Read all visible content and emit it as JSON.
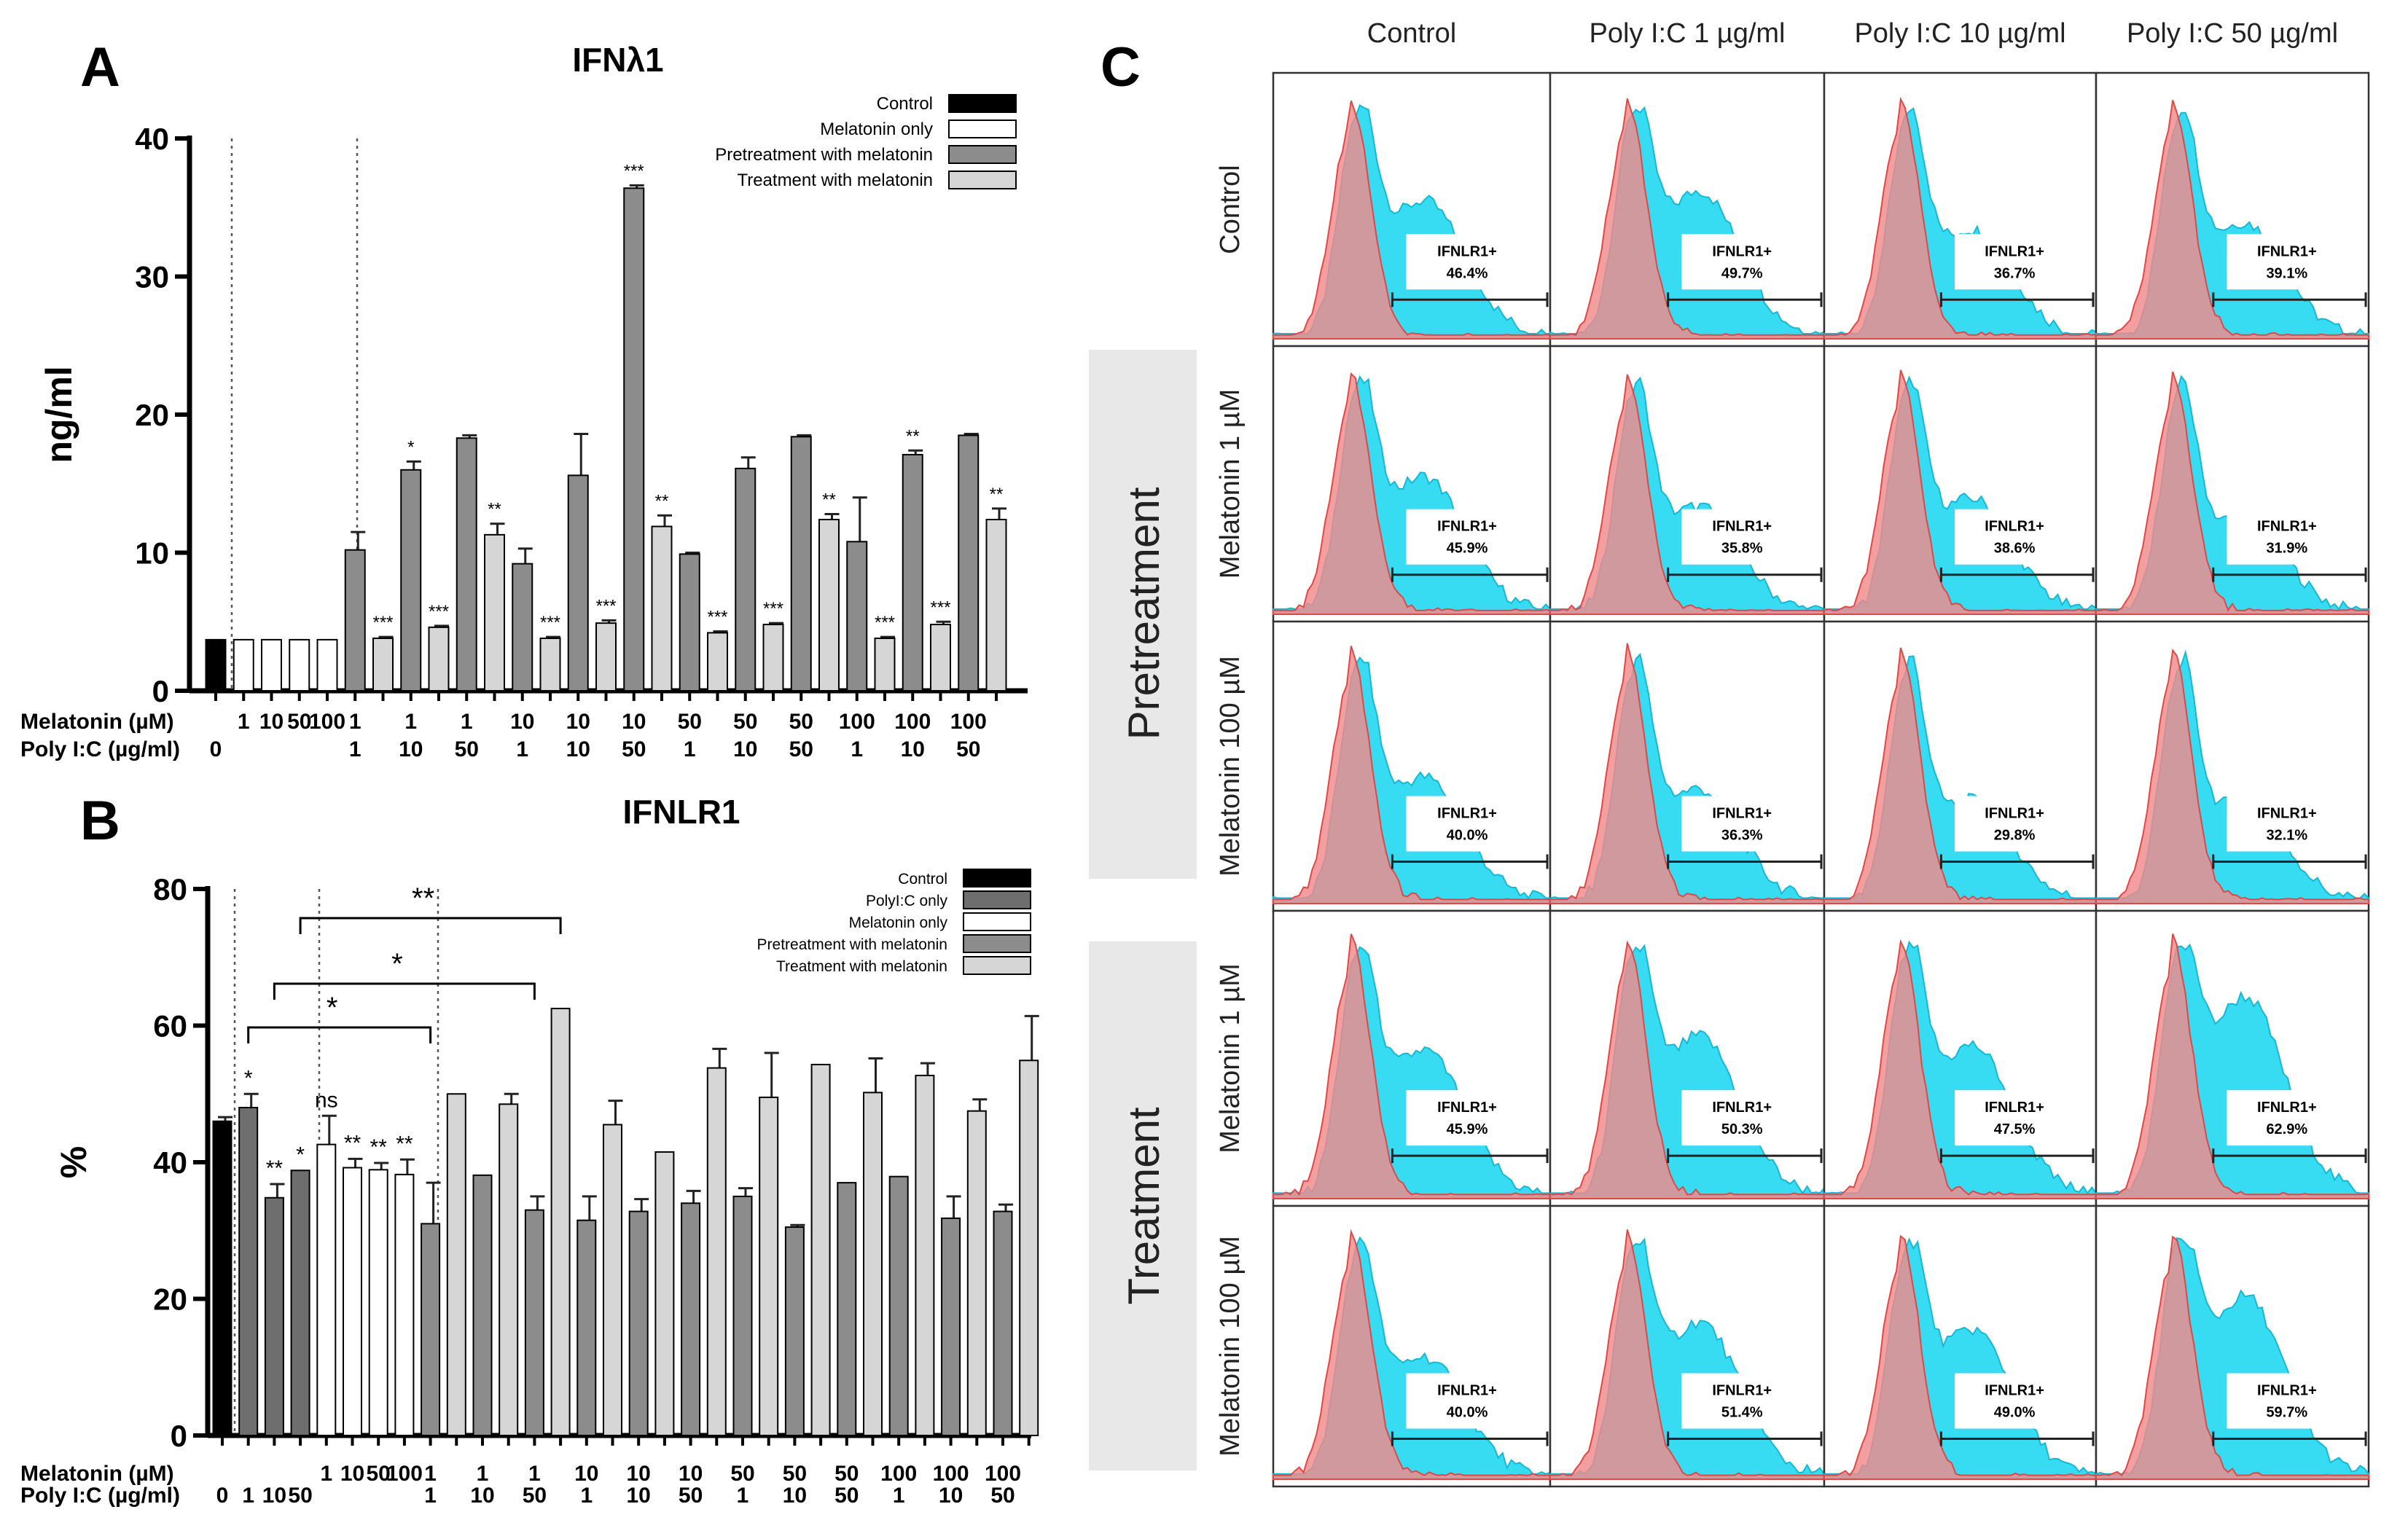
{
  "panel_labels": {
    "a": "A",
    "b": "B",
    "c": "C"
  },
  "colors": {
    "control": "#000000",
    "melatonin_only": "#ffffff",
    "polyic_only": "#6e6e6e",
    "pretreatment": "#8c8c8c",
    "treatment": "#d6d6d6",
    "histogram_control": "#f08a8a",
    "histogram_sample": "#38dcf2"
  },
  "chart_data": [
    {
      "id": "A",
      "type": "bar",
      "title": "IFNλ1",
      "ylabel": "ng/ml",
      "ylim": [
        0,
        40
      ],
      "yticks": [
        0,
        10,
        20,
        30,
        40
      ],
      "legend": [
        {
          "label": "Control",
          "group": "control"
        },
        {
          "label": "Melatonin only",
          "group": "melatonin_only"
        },
        {
          "label": "Pretreatment with melatonin",
          "group": "pretreatment"
        },
        {
          "label": "Treatment with melatonin",
          "group": "treatment"
        }
      ],
      "row_labels": [
        "Melatonin (µM)",
        "Poly I:C (µg/ml)"
      ],
      "bars": [
        {
          "group": "control",
          "value": 3.7,
          "err": 0,
          "melatonin": "",
          "polyic": "0",
          "sig": ""
        },
        {
          "group": "melatonin_only",
          "value": 3.7,
          "err": 0,
          "melatonin": "1",
          "polyic": "",
          "sig": ""
        },
        {
          "group": "melatonin_only",
          "value": 3.7,
          "err": 0,
          "melatonin": "10",
          "polyic": "",
          "sig": ""
        },
        {
          "group": "melatonin_only",
          "value": 3.7,
          "err": 0,
          "melatonin": "50",
          "polyic": "",
          "sig": ""
        },
        {
          "group": "melatonin_only",
          "value": 3.7,
          "err": 0,
          "melatonin": "100",
          "polyic": "",
          "sig": ""
        },
        {
          "group": "pretreatment",
          "value": 10.2,
          "err": 1.3,
          "melatonin": "1",
          "polyic": "1",
          "sig": ""
        },
        {
          "group": "treatment",
          "value": 3.8,
          "err": 0.1,
          "melatonin": "",
          "polyic": "",
          "sig": "***"
        },
        {
          "group": "pretreatment",
          "value": 16.0,
          "err": 0.6,
          "melatonin": "1",
          "polyic": "10",
          "sig": "*"
        },
        {
          "group": "treatment",
          "value": 4.6,
          "err": 0.1,
          "melatonin": "",
          "polyic": "",
          "sig": "***"
        },
        {
          "group": "pretreatment",
          "value": 18.3,
          "err": 0.2,
          "melatonin": "1",
          "polyic": "50",
          "sig": ""
        },
        {
          "group": "treatment",
          "value": 11.3,
          "err": 0.8,
          "melatonin": "",
          "polyic": "",
          "sig": "**"
        },
        {
          "group": "pretreatment",
          "value": 9.2,
          "err": 1.1,
          "melatonin": "10",
          "polyic": "1",
          "sig": ""
        },
        {
          "group": "treatment",
          "value": 3.8,
          "err": 0.1,
          "melatonin": "",
          "polyic": "",
          "sig": "***"
        },
        {
          "group": "pretreatment",
          "value": 15.6,
          "err": 3.0,
          "melatonin": "10",
          "polyic": "10",
          "sig": ""
        },
        {
          "group": "treatment",
          "value": 4.9,
          "err": 0.2,
          "melatonin": "",
          "polyic": "",
          "sig": "***"
        },
        {
          "group": "pretreatment",
          "value": 36.4,
          "err": 0.2,
          "melatonin": "10",
          "polyic": "50",
          "sig": "***"
        },
        {
          "group": "treatment",
          "value": 11.9,
          "err": 0.8,
          "melatonin": "",
          "polyic": "",
          "sig": "**"
        },
        {
          "group": "pretreatment",
          "value": 9.9,
          "err": 0.1,
          "melatonin": "50",
          "polyic": "1",
          "sig": ""
        },
        {
          "group": "treatment",
          "value": 4.2,
          "err": 0.1,
          "melatonin": "",
          "polyic": "",
          "sig": "***"
        },
        {
          "group": "pretreatment",
          "value": 16.1,
          "err": 0.8,
          "melatonin": "50",
          "polyic": "10",
          "sig": ""
        },
        {
          "group": "treatment",
          "value": 4.8,
          "err": 0.1,
          "melatonin": "",
          "polyic": "",
          "sig": "***"
        },
        {
          "group": "pretreatment",
          "value": 18.4,
          "err": 0.1,
          "melatonin": "50",
          "polyic": "50",
          "sig": ""
        },
        {
          "group": "treatment",
          "value": 12.4,
          "err": 0.4,
          "melatonin": "",
          "polyic": "",
          "sig": "**"
        },
        {
          "group": "pretreatment",
          "value": 10.8,
          "err": 3.2,
          "melatonin": "100",
          "polyic": "1",
          "sig": ""
        },
        {
          "group": "treatment",
          "value": 3.8,
          "err": 0.1,
          "melatonin": "",
          "polyic": "",
          "sig": "***"
        },
        {
          "group": "pretreatment",
          "value": 17.1,
          "err": 0.3,
          "melatonin": "100",
          "polyic": "10",
          "sig": "**"
        },
        {
          "group": "treatment",
          "value": 4.8,
          "err": 0.2,
          "melatonin": "",
          "polyic": "",
          "sig": "***"
        },
        {
          "group": "pretreatment",
          "value": 18.5,
          "err": 0.1,
          "melatonin": "100",
          "polyic": "50",
          "sig": ""
        },
        {
          "group": "treatment",
          "value": 12.4,
          "err": 0.8,
          "melatonin": "",
          "polyic": "",
          "sig": "**"
        }
      ]
    },
    {
      "id": "B",
      "type": "bar",
      "title": "IFNLR1",
      "ylabel": "%",
      "ylim": [
        0,
        80
      ],
      "yticks": [
        0,
        20,
        40,
        60,
        80
      ],
      "legend": [
        {
          "label": "Control",
          "group": "control"
        },
        {
          "label": "PolyI:C only",
          "group": "polyic_only"
        },
        {
          "label": "Melatonin only",
          "group": "melatonin_only"
        },
        {
          "label": "Pretreatment with melatonin",
          "group": "pretreatment"
        },
        {
          "label": "Treatment with melatonin",
          "group": "treatment"
        }
      ],
      "row_labels": [
        "Melatonin (µM)",
        "Poly I:C (µg/ml)"
      ],
      "bars": [
        {
          "group": "control",
          "value": 46.0,
          "err": 0.6,
          "melatonin": "",
          "polyic": "0",
          "sig": ""
        },
        {
          "group": "polyic_only",
          "value": 48.0,
          "err": 2.0,
          "melatonin": "",
          "polyic": "1",
          "sig": "*"
        },
        {
          "group": "polyic_only",
          "value": 34.8,
          "err": 2.0,
          "melatonin": "",
          "polyic": "10",
          "sig": "**"
        },
        {
          "group": "polyic_only",
          "value": 38.8,
          "err": 0,
          "melatonin": "",
          "polyic": "50",
          "sig": "*"
        },
        {
          "group": "melatonin_only",
          "value": 42.6,
          "err": 4.2,
          "melatonin": "1",
          "polyic": "",
          "sig": "ns"
        },
        {
          "group": "melatonin_only",
          "value": 39.2,
          "err": 1.3,
          "melatonin": "10",
          "polyic": "",
          "sig": "**"
        },
        {
          "group": "melatonin_only",
          "value": 38.9,
          "err": 1.0,
          "melatonin": "50",
          "polyic": "",
          "sig": "**"
        },
        {
          "group": "melatonin_only",
          "value": 38.2,
          "err": 2.2,
          "melatonin": "100",
          "polyic": "",
          "sig": "**"
        },
        {
          "group": "pretreatment",
          "value": 31.0,
          "err": 6.0,
          "melatonin": "1",
          "polyic": "1",
          "sig": ""
        },
        {
          "group": "treatment",
          "value": 50.0,
          "err": 0,
          "melatonin": "",
          "polyic": "",
          "sig": ""
        },
        {
          "group": "pretreatment",
          "value": 38.1,
          "err": 0,
          "melatonin": "1",
          "polyic": "10",
          "sig": ""
        },
        {
          "group": "treatment",
          "value": 48.5,
          "err": 1.5,
          "melatonin": "",
          "polyic": "",
          "sig": ""
        },
        {
          "group": "pretreatment",
          "value": 33.0,
          "err": 2.0,
          "melatonin": "1",
          "polyic": "50",
          "sig": ""
        },
        {
          "group": "treatment",
          "value": 62.5,
          "err": 0,
          "melatonin": "",
          "polyic": "",
          "sig": ""
        },
        {
          "group": "pretreatment",
          "value": 31.5,
          "err": 3.5,
          "melatonin": "10",
          "polyic": "1",
          "sig": ""
        },
        {
          "group": "treatment",
          "value": 45.5,
          "err": 3.5,
          "melatonin": "",
          "polyic": "",
          "sig": ""
        },
        {
          "group": "pretreatment",
          "value": 32.8,
          "err": 1.8,
          "melatonin": "10",
          "polyic": "10",
          "sig": ""
        },
        {
          "group": "treatment",
          "value": 41.5,
          "err": 0,
          "melatonin": "",
          "polyic": "",
          "sig": ""
        },
        {
          "group": "pretreatment",
          "value": 34.0,
          "err": 1.8,
          "melatonin": "10",
          "polyic": "50",
          "sig": ""
        },
        {
          "group": "treatment",
          "value": 53.8,
          "err": 2.8,
          "melatonin": "",
          "polyic": "",
          "sig": ""
        },
        {
          "group": "pretreatment",
          "value": 35.0,
          "err": 1.2,
          "melatonin": "50",
          "polyic": "1",
          "sig": ""
        },
        {
          "group": "treatment",
          "value": 49.5,
          "err": 6.5,
          "melatonin": "",
          "polyic": "",
          "sig": ""
        },
        {
          "group": "pretreatment",
          "value": 30.5,
          "err": 0.3,
          "melatonin": "50",
          "polyic": "10",
          "sig": ""
        },
        {
          "group": "treatment",
          "value": 54.3,
          "err": 0,
          "melatonin": "",
          "polyic": "",
          "sig": ""
        },
        {
          "group": "pretreatment",
          "value": 37.0,
          "err": 0,
          "melatonin": "50",
          "polyic": "50",
          "sig": ""
        },
        {
          "group": "treatment",
          "value": 50.2,
          "err": 5.0,
          "melatonin": "",
          "polyic": "",
          "sig": ""
        },
        {
          "group": "pretreatment",
          "value": 37.9,
          "err": 0,
          "melatonin": "100",
          "polyic": "1",
          "sig": ""
        },
        {
          "group": "treatment",
          "value": 52.7,
          "err": 1.8,
          "melatonin": "",
          "polyic": "",
          "sig": ""
        },
        {
          "group": "pretreatment",
          "value": 31.8,
          "err": 3.2,
          "melatonin": "100",
          "polyic": "10",
          "sig": ""
        },
        {
          "group": "treatment",
          "value": 47.5,
          "err": 1.7,
          "melatonin": "",
          "polyic": "",
          "sig": ""
        },
        {
          "group": "pretreatment",
          "value": 32.8,
          "err": 1.0,
          "melatonin": "100",
          "polyic": "50",
          "sig": ""
        },
        {
          "group": "treatment",
          "value": 54.9,
          "err": 6.5,
          "melatonin": "",
          "polyic": "",
          "sig": ""
        }
      ],
      "brackets": [
        {
          "from": 1,
          "to": 8,
          "label": "*"
        },
        {
          "from": 2,
          "to": 12,
          "label": "*"
        },
        {
          "from": 3,
          "to": 13,
          "label": "**"
        }
      ]
    },
    {
      "id": "C",
      "type": "histogram-grid",
      "columns": [
        "Control",
        "Poly I:C 1 µg/ml",
        "Poly I:C 10 µg/ml",
        "Poly I:C 50 µg/ml"
      ],
      "groups": [
        {
          "label": "Pretreatment",
          "rows": [
            1,
            2
          ]
        },
        {
          "label": "Treatment",
          "rows": [
            3,
            4
          ]
        }
      ],
      "rows": [
        {
          "label": "Control",
          "values": [
            "46.4%",
            "49.7%",
            "36.7%",
            "39.1%"
          ]
        },
        {
          "label": "Melatonin 1 µM",
          "values": [
            "45.9%",
            "35.8%",
            "38.6%",
            "31.9%"
          ]
        },
        {
          "label": "Melatonin 100 µM",
          "values": [
            "40.0%",
            "36.3%",
            "29.8%",
            "32.1%"
          ]
        },
        {
          "label": "Melatonin 1 µM",
          "values": [
            "45.9%",
            "50.3%",
            "47.5%",
            "62.9%"
          ]
        },
        {
          "label": "Melatonin 100 µM",
          "values": [
            "40.0%",
            "51.4%",
            "49.0%",
            "59.7%"
          ]
        }
      ],
      "gate_label": "IFNLR1+"
    }
  ]
}
